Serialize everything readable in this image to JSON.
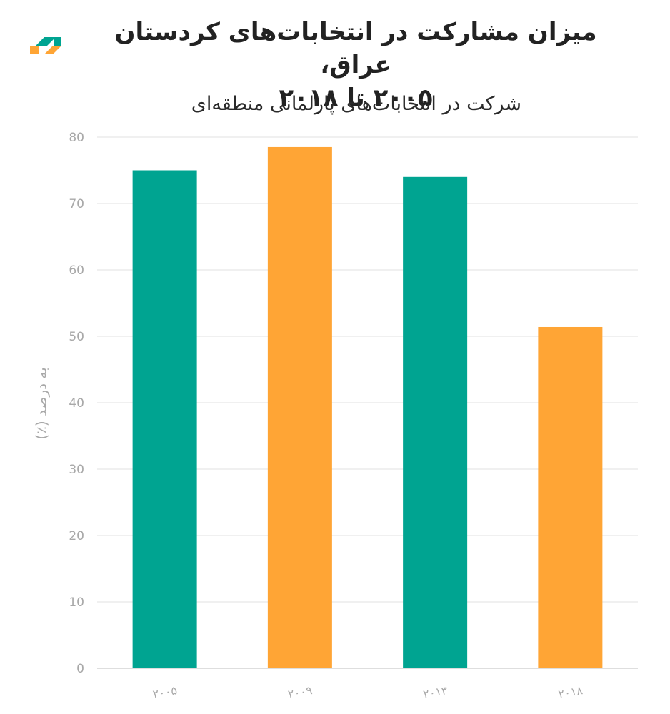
{
  "header": {
    "title_line1": "میزان مشارکت در انتخابات‌های کردستان عراق،",
    "title_line2": "۲۰۰۵ تا ۲۰۱۸",
    "subtitle": "شرکت در انتخابات‌های پارلمانی منطقه‌ای"
  },
  "colors": {
    "teal": "#00a491",
    "orange": "#ffa535",
    "grid": "#e6e6e6",
    "axis_text": "#a8a8a8",
    "title_text": "#222222"
  },
  "chart_data": {
    "type": "bar",
    "title": "میزان مشارکت در انتخابات‌های کردستان عراق، ۲۰۰۵ تا ۲۰۱۸",
    "subtitle": "شرکت در انتخابات‌های پارلمانی منطقه‌ای",
    "xlabel": "",
    "ylabel": "به درصد (٪)",
    "categories": [
      "۲۰۰۵",
      "۲۰۰۹",
      "۲۰۱۳",
      "۲۰۱۸"
    ],
    "values": [
      75,
      78.5,
      74,
      51.4
    ],
    "bar_colors": [
      "#00a491",
      "#ffa535",
      "#00a491",
      "#ffa535"
    ],
    "ylim": [
      0,
      80
    ],
    "yticks": [
      0,
      10,
      20,
      30,
      40,
      50,
      60,
      70,
      80
    ],
    "grid": true,
    "legend": "none"
  }
}
